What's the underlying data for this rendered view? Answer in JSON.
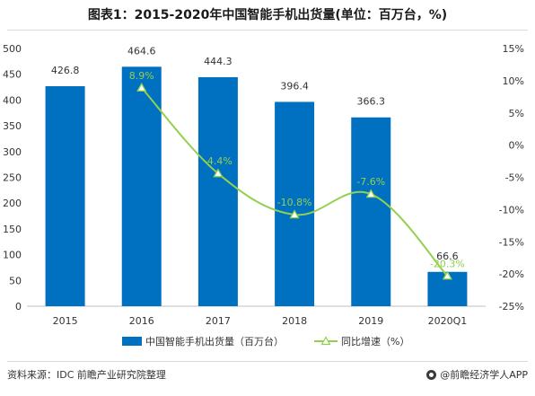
{
  "title": "图表1：2015-2020年中国智能手机出货量(单位：百万台，%)",
  "source": "资料来源：IDC 前瞻产业研究院整理",
  "brand": "@前瞻经济学人APP",
  "colors": {
    "bar": "#0070c0",
    "line": "#92d050",
    "marker_fill": "#ffffff"
  },
  "chart_data": {
    "type": "bar",
    "categories": [
      "2015",
      "2016",
      "2017",
      "2018",
      "2019",
      "2020Q1"
    ],
    "series": [
      {
        "name": "中国智能手机出货量（百万台）",
        "type": "bar",
        "axis": "left",
        "values": [
          426.8,
          464.6,
          444.3,
          396.4,
          366.3,
          66.6
        ],
        "labels": [
          "426.8",
          "464.6",
          "444.3",
          "396.4",
          "366.3",
          "66.6"
        ]
      },
      {
        "name": "同比增速（%）",
        "type": "line",
        "axis": "right",
        "smooth": true,
        "values": [
          null,
          8.9,
          -4.4,
          -10.8,
          -7.6,
          -20.3
        ],
        "labels": [
          "",
          "8.9%",
          "-4.4%",
          "-10.8%",
          "-7.6%",
          "-20.3%"
        ]
      }
    ],
    "y_left": {
      "ylim": [
        0,
        500
      ],
      "ticks": [
        0,
        50,
        100,
        150,
        200,
        250,
        300,
        350,
        400,
        450,
        500
      ],
      "tick_labels": [
        "0",
        "50",
        "100",
        "150",
        "200",
        "250",
        "300",
        "350",
        "400",
        "450",
        "500"
      ]
    },
    "y_right": {
      "ylim": [
        -25,
        15
      ],
      "ticks": [
        -25,
        -20,
        -15,
        -10,
        -5,
        0,
        5,
        10,
        15
      ],
      "tick_labels": [
        "-25%",
        "-20%",
        "-15%",
        "-10%",
        "-5%",
        "0%",
        "5%",
        "10%",
        "15%"
      ]
    },
    "grid": false,
    "legend_position": "bottom"
  }
}
